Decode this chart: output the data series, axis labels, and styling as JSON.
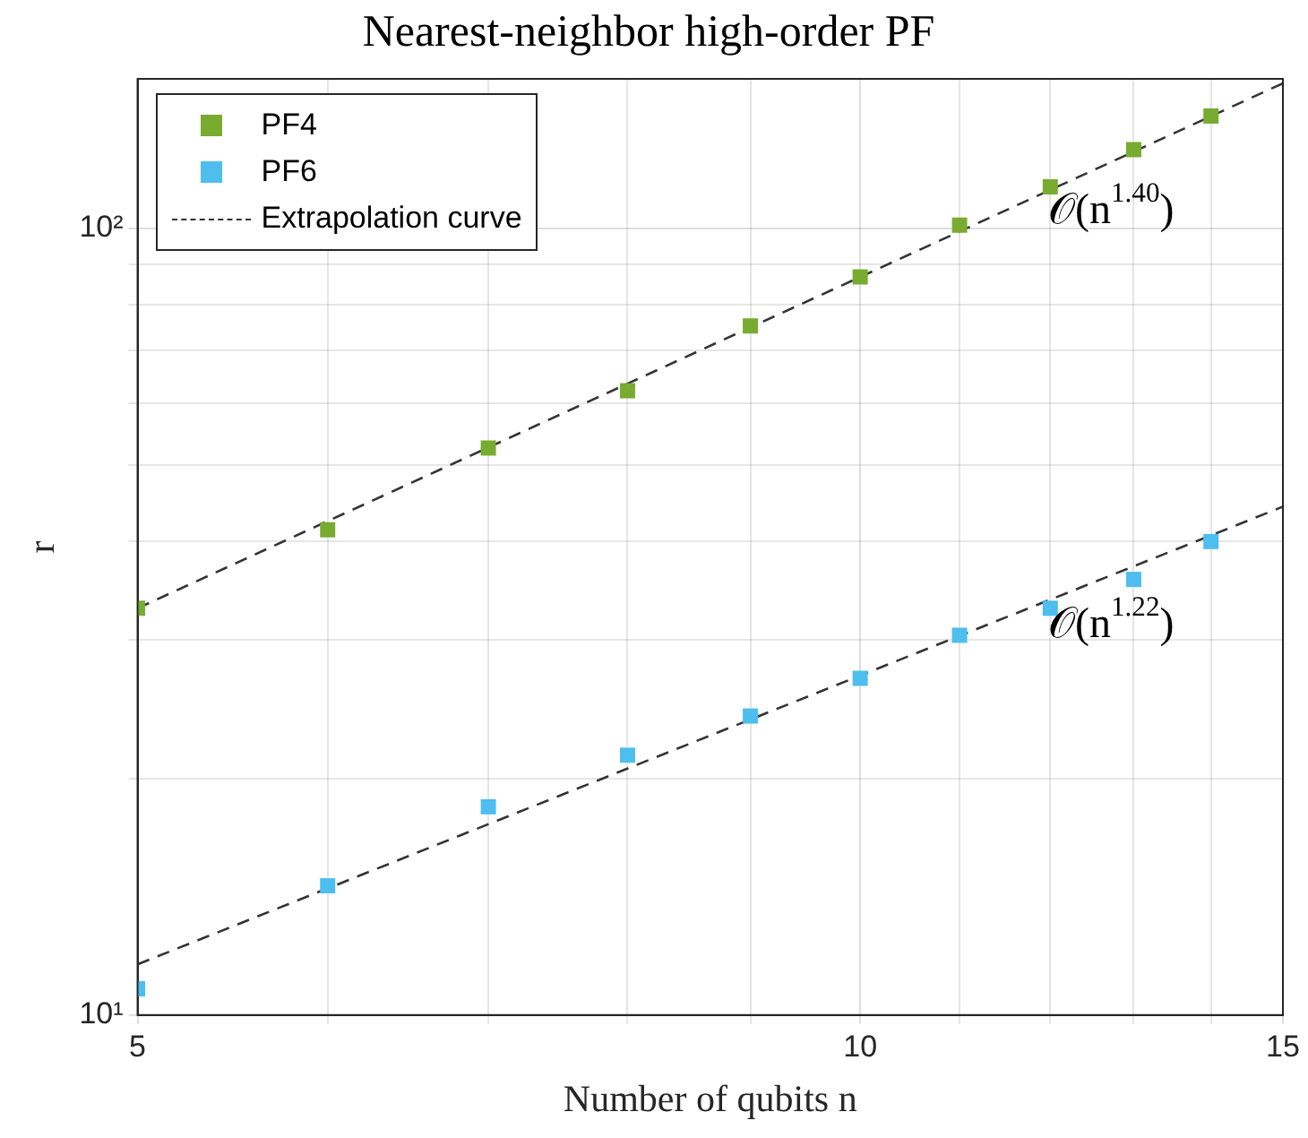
{
  "chart_data": {
    "type": "scatter",
    "title": "Nearest-neighbor high-order PF",
    "xlabel": "Number of qubits n",
    "ylabel": "r",
    "log": "xy",
    "grid": true,
    "legend": "top left",
    "xlim": [
      5,
      15
    ],
    "xticks": [
      5,
      {
        "value": 6,
        "label": null
      },
      {
        "value": 7,
        "label": null
      },
      {
        "value": 8,
        "label": null
      },
      {
        "value": 9,
        "label": null
      },
      10,
      {
        "value": 11,
        "label": null
      },
      {
        "value": 12,
        "label": null
      },
      {
        "value": 13,
        "label": null
      },
      {
        "value": 14,
        "label": null
      },
      15
    ],
    "ylim": [
      10,
      155
    ],
    "yticks": [
      {
        "value": 10,
        "label": "10¹"
      },
      {
        "value": 20,
        "label": null
      },
      {
        "value": 30,
        "label": null
      },
      {
        "value": 40,
        "label": null
      },
      {
        "value": 50,
        "label": null
      },
      {
        "value": 60,
        "label": null
      },
      {
        "value": 70,
        "label": null
      },
      {
        "value": 80,
        "label": null
      },
      {
        "value": 90,
        "label": null
      },
      {
        "value": 100,
        "label": "10²"
      }
    ],
    "series": [
      {
        "name": "PF4",
        "marker": "square",
        "color": "#77ac30",
        "x": [
          5,
          6,
          7,
          8,
          9,
          10,
          11,
          12,
          13,
          14
        ],
        "values": [
          32.9,
          41.4,
          52.6,
          62.2,
          75.2,
          86.8,
          101,
          113,
          126,
          139
        ]
      },
      {
        "name": "PF6",
        "marker": "square",
        "color": "#4dbeee",
        "x": [
          5,
          6,
          7,
          8,
          9,
          10,
          11,
          12,
          13,
          14
        ],
        "values": [
          10.8,
          14.6,
          18.4,
          21.4,
          24.0,
          26.8,
          30.4,
          32.9,
          35.8,
          40.0
        ]
      },
      {
        "name": "Extrapolation curve",
        "type": "line",
        "marker": "none",
        "line_style": "dashed",
        "color": "#333333",
        "x": [
          5,
          15
        ],
        "values": [
          32.9,
          153
        ]
      },
      {
        "type": "line",
        "marker": "none",
        "line_style": "dashed",
        "color": "#333333",
        "x": [
          5,
          15
        ],
        "values": [
          11.6,
          44.3
        ]
      }
    ],
    "annotations": [
      "𝒪(n$^{1.40}$)",
      "𝒪(n$^{1.22}$)"
    ]
  }
}
